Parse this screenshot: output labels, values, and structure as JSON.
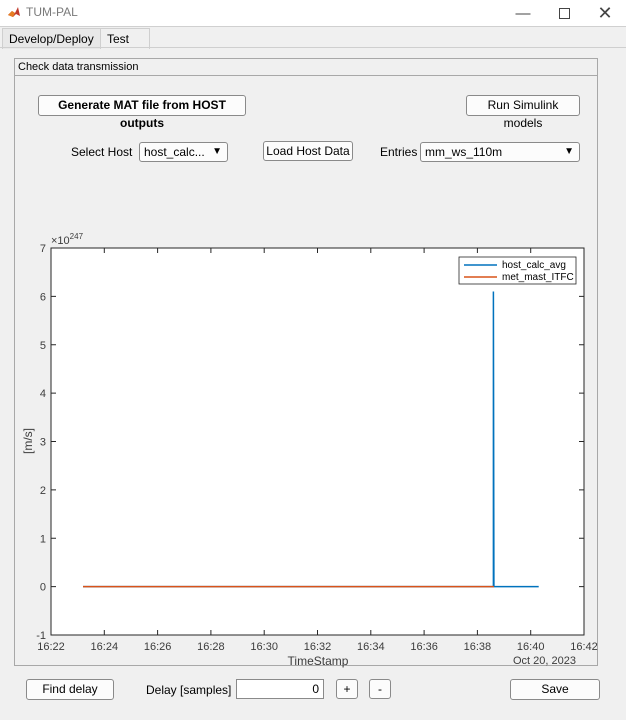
{
  "window": {
    "title": "TUM-PAL"
  },
  "tabs": [
    {
      "label": "Develop/Deploy"
    },
    {
      "label": "Test"
    }
  ],
  "panel": {
    "title": "Check data transmission"
  },
  "buttons": {
    "generate": "Generate MAT file from HOST outputs",
    "run_simulink": "Run Simulink models",
    "load_host": "Load Host Data",
    "find_delay": "Find delay",
    "plus": "+",
    "minus": "-",
    "save": "Save"
  },
  "selectors": {
    "host_label": "Select Host",
    "host_value": "host_calc...",
    "entries_label": "Entries",
    "entries_value": "mm_ws_110m"
  },
  "delay": {
    "label": "Delay [samples]",
    "value": "0"
  },
  "colors": {
    "series_1": "#0072BD",
    "series_2": "#D95319"
  },
  "chart_data": {
    "type": "line",
    "xlabel": "TimeStamp",
    "ylabel": "[m/s]",
    "y_exponent_label": "×10",
    "y_exponent_power": "247",
    "x_secondary_label": "Oct 20, 2023",
    "x_ticks": [
      "16:22",
      "16:24",
      "16:26",
      "16:28",
      "16:30",
      "16:32",
      "16:34",
      "16:36",
      "16:38",
      "16:40",
      "16:42"
    ],
    "y_ticks": [
      "-1",
      "0",
      "1",
      "2",
      "3",
      "4",
      "5",
      "6",
      "7"
    ],
    "x_range_minutes": [
      0,
      20
    ],
    "ylim": [
      -1,
      7
    ],
    "legend_position": "top-right",
    "grid": false,
    "series": [
      {
        "name": "host_calc_avg",
        "points": [
          [
            1.2,
            0
          ],
          [
            16.6,
            0
          ],
          [
            16.6,
            6.1
          ],
          [
            16.62,
            0
          ],
          [
            18.3,
            0
          ]
        ]
      },
      {
        "name": "met_mast_ITFC",
        "points": [
          [
            1.2,
            0
          ],
          [
            16.62,
            0
          ]
        ]
      }
    ]
  }
}
